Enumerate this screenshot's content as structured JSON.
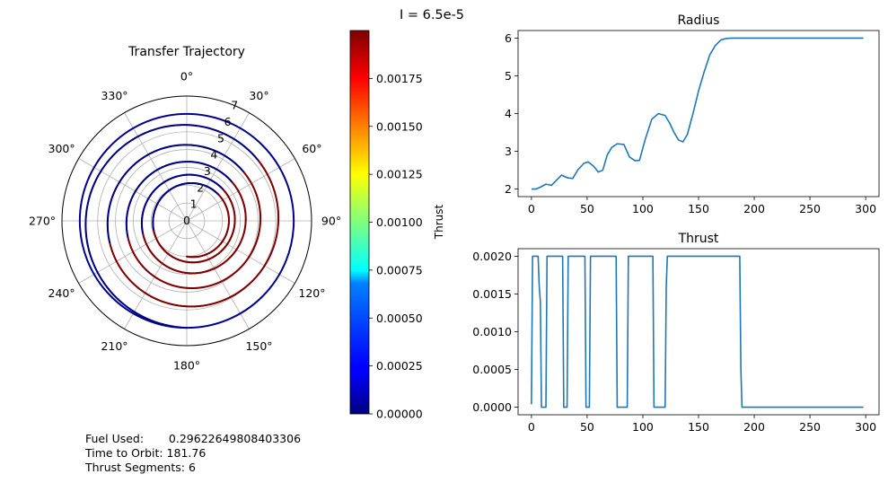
{
  "suptitle": "I = 6.5e-5",
  "chart_data": [
    {
      "type": "polar",
      "title": "Transfer Trajectory",
      "r_ticks": [
        0,
        1,
        2,
        3,
        4,
        5,
        6,
        7
      ],
      "r_max": 7,
      "theta_ticks": [
        "0°",
        "30°",
        "60°",
        "90°",
        "120°",
        "150°",
        "180°",
        "210°",
        "240°",
        "270°",
        "300°",
        "330°"
      ],
      "trajectory": {
        "r_start": 2.0,
        "r_end": 6.0,
        "revolutions": 5,
        "thrust_on": 0.002,
        "thrust_off": 0.0
      },
      "colorbar": {
        "label": "Thrust",
        "colormap": "jet",
        "vmin": 0.0,
        "vmax": 0.002,
        "ticks": [
          "0.00000",
          "0.00025",
          "0.00050",
          "0.00075",
          "0.00100",
          "0.00125",
          "0.00150",
          "0.00175"
        ],
        "tick_values": [
          0.0,
          0.00025,
          0.0005,
          0.00075,
          0.001,
          0.00125,
          0.0015,
          0.00175
        ]
      }
    },
    {
      "type": "line",
      "title": "Radius",
      "xlim": [
        -12,
        312
      ],
      "ylim": [
        1.8,
        6.2
      ],
      "x_ticks": [
        0,
        50,
        100,
        150,
        200,
        250,
        300
      ],
      "y_ticks": [
        2,
        3,
        4,
        5,
        6
      ],
      "x_tick_labels": [
        "0",
        "50",
        "100",
        "150",
        "200",
        "250",
        "300"
      ],
      "y_tick_labels": [
        "2",
        "3",
        "4",
        "5",
        "6"
      ],
      "x": [
        0,
        4,
        8,
        13,
        18,
        22,
        27,
        32,
        37,
        42,
        47,
        51,
        56,
        60,
        64,
        68,
        72,
        77,
        83,
        88,
        93,
        97,
        102,
        108,
        114,
        120,
        124,
        128,
        132,
        136,
        140,
        145,
        150,
        155,
        160,
        165,
        170,
        175,
        180,
        185,
        200,
        250,
        298
      ],
      "values": [
        2.0,
        2.0,
        2.05,
        2.13,
        2.1,
        2.22,
        2.37,
        2.3,
        2.28,
        2.52,
        2.68,
        2.72,
        2.6,
        2.45,
        2.5,
        2.9,
        3.1,
        3.2,
        3.18,
        2.85,
        2.75,
        2.76,
        3.3,
        3.85,
        4.0,
        3.95,
        3.75,
        3.5,
        3.3,
        3.25,
        3.45,
        4.0,
        4.6,
        5.1,
        5.55,
        5.8,
        5.95,
        5.99,
        6.0,
        6.0,
        6.0,
        6.0,
        6.0
      ]
    },
    {
      "type": "line",
      "title": "Thrust",
      "xlim": [
        -12,
        312
      ],
      "ylim": [
        -0.0001,
        0.0021
      ],
      "x_ticks": [
        0,
        50,
        100,
        150,
        200,
        250,
        300
      ],
      "y_ticks": [
        0.0,
        0.0005,
        0.001,
        0.0015,
        0.002
      ],
      "x_tick_labels": [
        "0",
        "50",
        "100",
        "150",
        "200",
        "250",
        "300"
      ],
      "y_tick_labels": [
        "0.0000",
        "0.0005",
        "0.0010",
        "0.0015",
        "0.0020"
      ],
      "x": [
        0,
        1,
        2,
        6,
        7,
        8,
        9,
        10,
        13,
        14,
        28,
        29,
        32,
        33,
        48,
        49,
        52,
        53,
        76,
        77,
        86,
        87,
        109,
        110,
        119,
        120,
        121,
        122,
        123,
        187,
        188,
        189,
        298
      ],
      "values": [
        4e-05,
        0.002,
        0.002,
        0.002,
        0.0016,
        0.0014,
        0.0,
        0.0,
        0.0,
        0.002,
        0.002,
        0.0,
        0.0,
        0.002,
        0.002,
        0.0,
        0.0,
        0.002,
        0.002,
        0.0,
        0.0,
        0.002,
        0.002,
        0.0,
        0.0,
        0.0,
        0.0016,
        0.002,
        0.002,
        0.002,
        0.0005,
        0.0,
        0.0
      ]
    }
  ],
  "info": {
    "fuel_label": "Fuel Used:",
    "fuel_value": "0.29622649808403306",
    "time_line": "Time to Orbit: 181.76",
    "segments_line": "Thrust Segments: 6"
  }
}
